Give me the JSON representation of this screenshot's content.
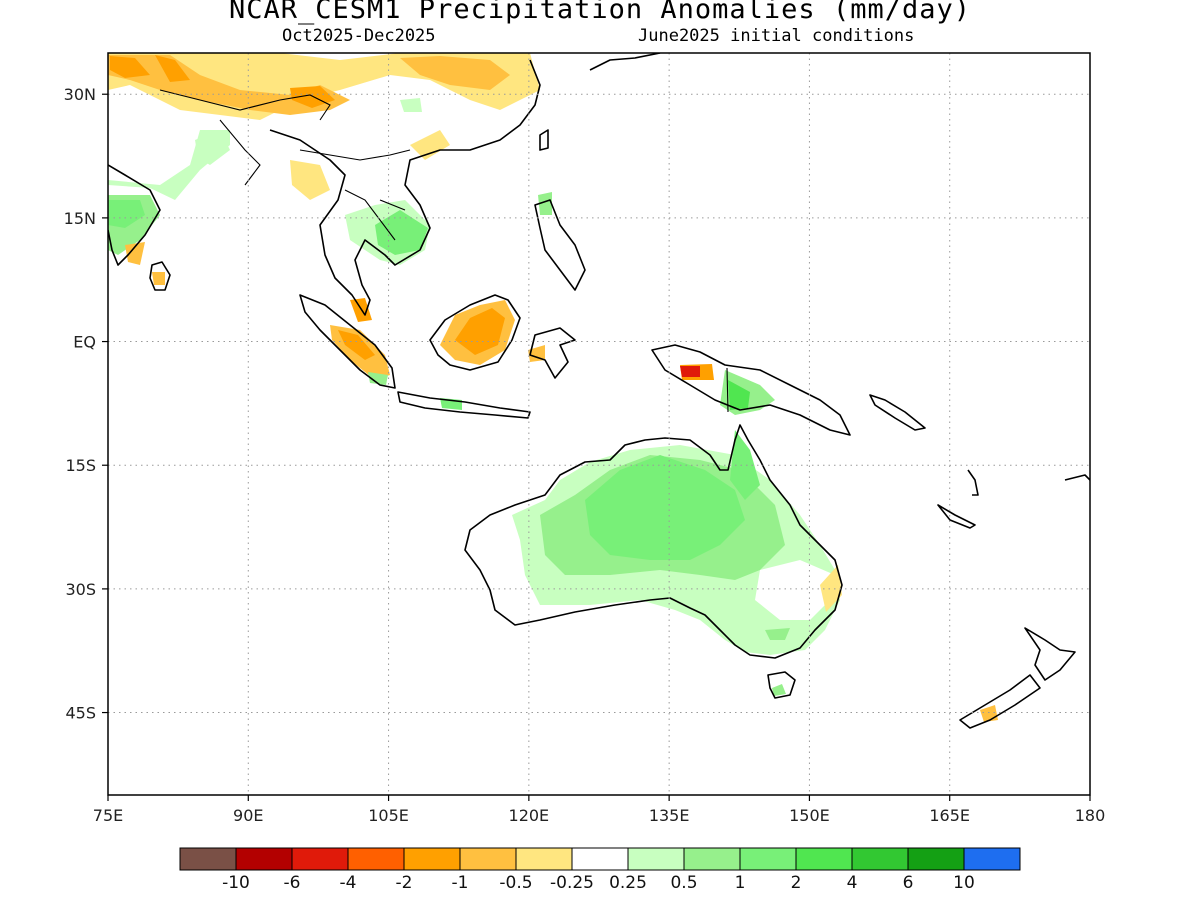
{
  "header": {
    "title": "NCAR_CESM1 Precipitation Anomalies (mm/day)",
    "period": "Oct2025-Dec2025",
    "init": "June2025 initial conditions"
  },
  "map": {
    "lon_range": [
      75,
      180
    ],
    "lat_range": [
      -55,
      35
    ],
    "x_ticks": [
      "75E",
      "90E",
      "105E",
      "120E",
      "135E",
      "150E",
      "165E",
      "180"
    ],
    "y_ticks": [
      "30N",
      "15N",
      "EQ",
      "15S",
      "30S",
      "45S"
    ],
    "x_tick_values": [
      75,
      90,
      105,
      120,
      135,
      150,
      165,
      180
    ],
    "y_tick_values": [
      30,
      15,
      0,
      -15,
      -30,
      -45
    ],
    "grid": "dotted"
  },
  "colorbar": {
    "colors": [
      "#7a5046",
      "#b30000",
      "#e01a0a",
      "#ff6000",
      "#ffa000",
      "#ffc040",
      "#ffe680",
      "#ffffff",
      "#c8ffc0",
      "#96f08c",
      "#78f078",
      "#50e650",
      "#32c832",
      "#14a014",
      "#1e6ef0"
    ],
    "labels": [
      "-10",
      "-6",
      "-4",
      "-2",
      "-1",
      "-0.5",
      "-0.25",
      "0.25",
      "0.5",
      "1",
      "2",
      "4",
      "6",
      "10"
    ]
  }
}
